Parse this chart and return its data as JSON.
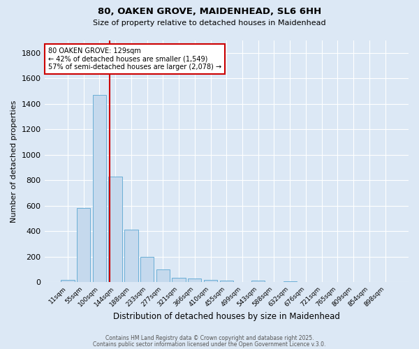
{
  "title_line1": "80, OAKEN GROVE, MAIDENHEAD, SL6 6HH",
  "title_line2": "Size of property relative to detached houses in Maidenhead",
  "xlabel": "Distribution of detached houses by size in Maidenhead",
  "ylabel": "Number of detached properties",
  "bar_labels": [
    "11sqm",
    "55sqm",
    "100sqm",
    "144sqm",
    "188sqm",
    "233sqm",
    "277sqm",
    "321sqm",
    "366sqm",
    "410sqm",
    "455sqm",
    "499sqm",
    "543sqm",
    "588sqm",
    "632sqm",
    "676sqm",
    "721sqm",
    "765sqm",
    "809sqm",
    "854sqm",
    "898sqm"
  ],
  "bar_values": [
    20,
    585,
    1470,
    830,
    415,
    200,
    100,
    35,
    30,
    20,
    15,
    0,
    15,
    0,
    10,
    0,
    0,
    0,
    0,
    0,
    0
  ],
  "bar_color": "#c5d9ed",
  "bar_edgecolor": "#6aaed6",
  "background_color": "#dce8f5",
  "grid_color": "#ffffff",
  "red_line_color": "#cc0000",
  "annotation_title": "80 OAKEN GROVE: 129sqm",
  "annotation_line1": "← 42% of detached houses are smaller (1,549)",
  "annotation_line2": "57% of semi-detached houses are larger (2,078) →",
  "annotation_box_color": "#ffffff",
  "annotation_box_edgecolor": "#cc0000",
  "ylim": [
    0,
    1900
  ],
  "yticks": [
    0,
    200,
    400,
    600,
    800,
    1000,
    1200,
    1400,
    1600,
    1800
  ],
  "footer_line1": "Contains HM Land Registry data © Crown copyright and database right 2025.",
  "footer_line2": "Contains public sector information licensed under the Open Government Licence v.3.0."
}
